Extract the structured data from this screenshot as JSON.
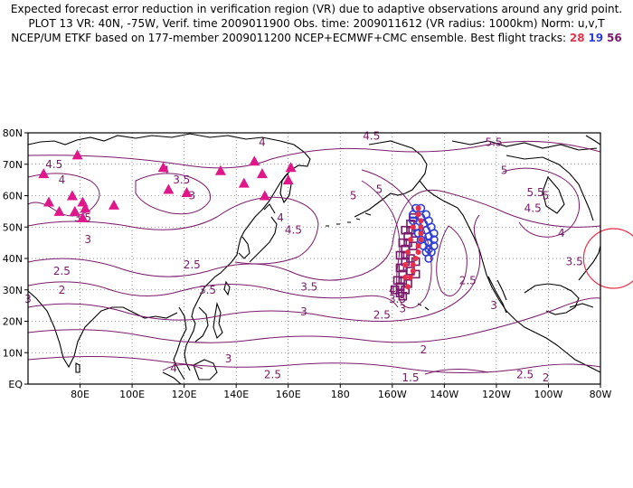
{
  "header": {
    "line1": "Expected forecast error reduction in verification region (VR) due to adaptive observations around any grid point.",
    "line2": "PLOT 13 VR: 40N, -75W, Verif. time 2009011900 Obs. time: 2009011612 (VR radius: 1000km) Norm: u,v,T",
    "line3_prefix": "NCEP/UM ETKF based on 177-member 2009011200 NCEP+ECMWF+CMC ensemble. Best flight tracks:",
    "tracks": [
      {
        "label": "28",
        "color": "#e8304a"
      },
      {
        "label": "19",
        "color": "#2f3fd6"
      },
      {
        "label": "56",
        "color": "#7a1a6a"
      }
    ]
  },
  "axes": {
    "x_ticks": [
      "80E",
      "100E",
      "120E",
      "140E",
      "160E",
      "180",
      "160W",
      "140W",
      "120W",
      "100W",
      "80W"
    ],
    "y_ticks": [
      "80N",
      "70N",
      "60N",
      "50N",
      "40N",
      "30N",
      "20N",
      "10N",
      "EQ"
    ]
  },
  "map": {
    "contour_color": "#7a1a6a",
    "land_color": "#000000",
    "grid_color": "#7a7a7a",
    "marker_color": "#e0178a",
    "vr_color": "#e8304a",
    "vr_center": {
      "lat": 40,
      "lon": -75
    },
    "contour_labels": [
      {
        "text": "4.5",
        "lat": 70,
        "lon": 70
      },
      {
        "text": "4",
        "lat": 65,
        "lon": 73
      },
      {
        "text": "3.5",
        "lat": 53,
        "lon": 81
      },
      {
        "text": "4",
        "lat": 68,
        "lon": 113
      },
      {
        "text": "3.5",
        "lat": 65,
        "lon": 119
      },
      {
        "text": "3",
        "lat": 60,
        "lon": 123
      },
      {
        "text": "4",
        "lat": 77,
        "lon": 150
      },
      {
        "text": "4.5",
        "lat": 79,
        "lon": 192
      },
      {
        "text": "4",
        "lat": 53,
        "lon": 157
      },
      {
        "text": "4.5",
        "lat": 49,
        "lon": 162
      },
      {
        "text": "5",
        "lat": 60,
        "lon": 185
      },
      {
        "text": "5",
        "lat": 62,
        "lon": 195
      },
      {
        "text": "5.5",
        "lat": 77,
        "lon": 239
      },
      {
        "text": "5",
        "lat": 68,
        "lon": 243
      },
      {
        "text": "5.5",
        "lat": 61,
        "lon": 255
      },
      {
        "text": "5",
        "lat": 60,
        "lon": 259
      },
      {
        "text": "4.5",
        "lat": 56,
        "lon": 254
      },
      {
        "text": "4",
        "lat": 48,
        "lon": 265
      },
      {
        "text": "3.5",
        "lat": 39,
        "lon": 270
      },
      {
        "text": "3",
        "lat": 46,
        "lon": 83
      },
      {
        "text": "2.5",
        "lat": 36,
        "lon": 73
      },
      {
        "text": "2",
        "lat": 30,
        "lon": 73
      },
      {
        "text": "3",
        "lat": 27,
        "lon": 60
      },
      {
        "text": "2.5",
        "lat": 38,
        "lon": 123
      },
      {
        "text": "3.5",
        "lat": 30,
        "lon": 129
      },
      {
        "text": "3.5",
        "lat": 31,
        "lon": 168
      },
      {
        "text": "3",
        "lat": 23,
        "lon": 166
      },
      {
        "text": "4",
        "lat": 30,
        "lon": 200
      },
      {
        "text": "3.5",
        "lat": 27,
        "lon": 202
      },
      {
        "text": "3",
        "lat": 24,
        "lon": 204
      },
      {
        "text": "2.5",
        "lat": 22,
        "lon": 196
      },
      {
        "text": "2.5",
        "lat": 33,
        "lon": 229
      },
      {
        "text": "3",
        "lat": 25,
        "lon": 239
      },
      {
        "text": "3",
        "lat": 8,
        "lon": 137
      },
      {
        "text": "2.5",
        "lat": 3,
        "lon": 154
      },
      {
        "text": "1.5",
        "lat": 2,
        "lon": 207
      },
      {
        "text": "2",
        "lat": 11,
        "lon": 212
      },
      {
        "text": "2.5",
        "lat": 3,
        "lon": 251
      },
      {
        "text": "2",
        "lat": 2,
        "lon": 259
      },
      {
        "text": "4",
        "lat": 5,
        "lon": 116
      }
    ],
    "triangles": [
      {
        "lat": 67,
        "lon": 66
      },
      {
        "lat": 73,
        "lon": 79
      },
      {
        "lat": 58,
        "lon": 68
      },
      {
        "lat": 55,
        "lon": 72
      },
      {
        "lat": 60,
        "lon": 77
      },
      {
        "lat": 55,
        "lon": 78
      },
      {
        "lat": 58,
        "lon": 81
      },
      {
        "lat": 56,
        "lon": 82
      },
      {
        "lat": 53,
        "lon": 81
      },
      {
        "lat": 57,
        "lon": 93
      },
      {
        "lat": 69,
        "lon": 112
      },
      {
        "lat": 62,
        "lon": 114
      },
      {
        "lat": 61,
        "lon": 121
      },
      {
        "lat": 68,
        "lon": 134
      },
      {
        "lat": 64,
        "lon": 143
      },
      {
        "lat": 71,
        "lon": 147
      },
      {
        "lat": 67,
        "lon": 150
      },
      {
        "lat": 60,
        "lon": 151
      },
      {
        "lat": 69,
        "lon": 161
      },
      {
        "lat": 65,
        "lon": 160
      }
    ],
    "track_blue": [
      {
        "lat": 56,
        "lon": 211
      },
      {
        "lat": 54,
        "lon": 213
      },
      {
        "lat": 52,
        "lon": 214
      },
      {
        "lat": 50,
        "lon": 215
      },
      {
        "lat": 48,
        "lon": 216
      },
      {
        "lat": 46,
        "lon": 216
      },
      {
        "lat": 44,
        "lon": 216
      },
      {
        "lat": 42,
        "lon": 215
      },
      {
        "lat": 40,
        "lon": 214
      },
      {
        "lat": 42,
        "lon": 213
      },
      {
        "lat": 44,
        "lon": 212
      },
      {
        "lat": 46,
        "lon": 211
      },
      {
        "lat": 48,
        "lon": 210
      },
      {
        "lat": 50,
        "lon": 209
      },
      {
        "lat": 52,
        "lon": 208
      },
      {
        "lat": 54,
        "lon": 208
      },
      {
        "lat": 56,
        "lon": 209
      },
      {
        "lat": 53,
        "lon": 211
      },
      {
        "lat": 51,
        "lon": 212
      },
      {
        "lat": 49,
        "lon": 213
      },
      {
        "lat": 47,
        "lon": 214
      },
      {
        "lat": 45,
        "lon": 214
      },
      {
        "lat": 43,
        "lon": 214
      }
    ],
    "track_red": [
      {
        "lat": 56,
        "lon": 210
      },
      {
        "lat": 54,
        "lon": 210
      },
      {
        "lat": 52,
        "lon": 211
      },
      {
        "lat": 50,
        "lon": 211
      },
      {
        "lat": 48,
        "lon": 211
      },
      {
        "lat": 46,
        "lon": 211
      },
      {
        "lat": 44,
        "lon": 210
      },
      {
        "lat": 42,
        "lon": 210
      },
      {
        "lat": 40,
        "lon": 209
      },
      {
        "lat": 38,
        "lon": 208
      },
      {
        "lat": 36,
        "lon": 208
      },
      {
        "lat": 34,
        "lon": 207
      },
      {
        "lat": 50,
        "lon": 208
      },
      {
        "lat": 46,
        "lon": 207
      },
      {
        "lat": 42,
        "lon": 206
      },
      {
        "lat": 38,
        "lon": 205
      },
      {
        "lat": 34,
        "lon": 205
      },
      {
        "lat": 31,
        "lon": 206
      }
    ],
    "track_purple": [
      {
        "lat": 53,
        "lon": 208
      },
      {
        "lat": 51,
        "lon": 207
      },
      {
        "lat": 49,
        "lon": 207
      },
      {
        "lat": 47,
        "lon": 206
      },
      {
        "lat": 45,
        "lon": 206
      },
      {
        "lat": 43,
        "lon": 205
      },
      {
        "lat": 41,
        "lon": 205
      },
      {
        "lat": 39,
        "lon": 205
      },
      {
        "lat": 37,
        "lon": 204
      },
      {
        "lat": 35,
        "lon": 204
      },
      {
        "lat": 33,
        "lon": 204
      },
      {
        "lat": 31,
        "lon": 203
      },
      {
        "lat": 29,
        "lon": 203
      },
      {
        "lat": 28,
        "lon": 204
      },
      {
        "lat": 30,
        "lon": 205
      },
      {
        "lat": 32,
        "lon": 206
      },
      {
        "lat": 36,
        "lon": 207
      },
      {
        "lat": 40,
        "lon": 207
      },
      {
        "lat": 44,
        "lon": 208
      },
      {
        "lat": 48,
        "lon": 209
      },
      {
        "lat": 45,
        "lon": 204
      },
      {
        "lat": 41,
        "lon": 203
      },
      {
        "lat": 37,
        "lon": 203
      },
      {
        "lat": 33,
        "lon": 202
      },
      {
        "lat": 39,
        "lon": 209
      },
      {
        "lat": 35,
        "lon": 209
      },
      {
        "lat": 30,
        "lon": 201
      },
      {
        "lat": 49,
        "lon": 205
      }
    ]
  }
}
